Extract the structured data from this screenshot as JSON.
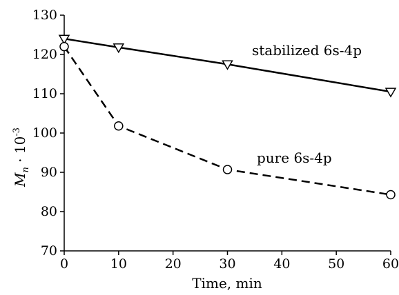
{
  "chart_data": {
    "type": "line",
    "xlabel": "Time, min",
    "ylabel": {
      "main": "M",
      "sub": "n",
      "mid": " · 10",
      "sup": "-3"
    },
    "xlim": [
      0,
      60
    ],
    "ylim": [
      70,
      130
    ],
    "xticks": [
      0,
      10,
      20,
      30,
      40,
      50,
      60
    ],
    "yticks": [
      70,
      80,
      90,
      100,
      110,
      120,
      130
    ],
    "grid": false,
    "series": [
      {
        "name": "stabilized 6s-4p",
        "marker": "triangle-down",
        "line": "solid",
        "x": [
          0,
          10,
          30,
          60
        ],
        "y": [
          124,
          121.8,
          117.5,
          110.5
        ]
      },
      {
        "name": "pure 6s-4p",
        "marker": "circle",
        "line": "dashed",
        "x": [
          0,
          10,
          30,
          60
        ],
        "y": [
          122,
          101.8,
          90.7,
          84.3
        ]
      }
    ]
  }
}
